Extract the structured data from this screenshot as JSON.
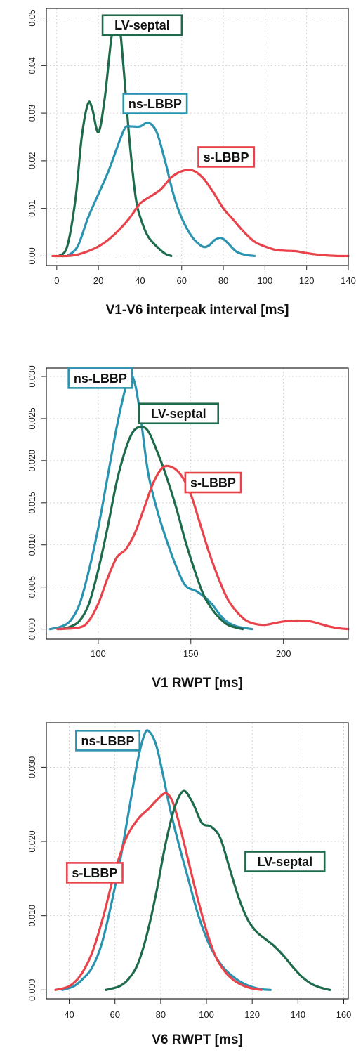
{
  "colors": {
    "lv_septal": "#1e6b4c",
    "ns_lbbp": "#2a93b0",
    "s_lbbp": "#e8434b",
    "grid": "#c8c8c8",
    "axis": "#222222"
  },
  "chart_data": [
    {
      "type": "line",
      "title": "",
      "xlabel": "V1-V6 interpeak interval [ms]",
      "ylabel": "",
      "xlim": [
        -5,
        140
      ],
      "ylim": [
        -0.002,
        0.052
      ],
      "xticks": [
        0,
        20,
        40,
        60,
        80,
        100,
        120,
        140
      ],
      "xtick_labels": [
        "0",
        "20",
        "40",
        "60",
        "80",
        "100",
        "120",
        "140"
      ],
      "yticks": [
        0,
        0.01,
        0.02,
        0.03,
        0.04,
        0.05
      ],
      "ytick_labels": [
        "0.00",
        "0.01",
        "0.02",
        "0.03",
        "0.04",
        "0.05"
      ],
      "grid": true,
      "legend": "labels placed next to curves",
      "series": [
        {
          "name": "LV-septal",
          "color_key": "lv_septal",
          "label_at": [
            22,
            0.0485
          ],
          "x": [
            1,
            5,
            9,
            12,
            15,
            17,
            20,
            23,
            26,
            28,
            30,
            32,
            35,
            38,
            41,
            44,
            48,
            52,
            55
          ],
          "y": [
            0,
            0.002,
            0.012,
            0.025,
            0.032,
            0.031,
            0.026,
            0.033,
            0.045,
            0.05,
            0.049,
            0.04,
            0.024,
            0.012,
            0.007,
            0.004,
            0.002,
            0.0005,
            0
          ]
        },
        {
          "name": "ns-LBBP",
          "color_key": "ns_lbbp",
          "label_at": [
            32,
            0.032
          ],
          "x": [
            5,
            10,
            15,
            20,
            25,
            30,
            33,
            36,
            40,
            44,
            48,
            52,
            56,
            60,
            65,
            70,
            73,
            76,
            79,
            82,
            86,
            90,
            95
          ],
          "y": [
            0,
            0.002,
            0.008,
            0.013,
            0.018,
            0.024,
            0.027,
            0.0272,
            0.0272,
            0.028,
            0.026,
            0.02,
            0.013,
            0.008,
            0.004,
            0.002,
            0.0022,
            0.0034,
            0.0038,
            0.0028,
            0.001,
            0.0003,
            0
          ]
        },
        {
          "name": "s-LBBP",
          "color_key": "s_lbbp",
          "label_at": [
            68,
            0.0208
          ],
          "x": [
            -2,
            5,
            10,
            15,
            20,
            25,
            30,
            35,
            40,
            45,
            50,
            55,
            60,
            65,
            70,
            75,
            80,
            85,
            90,
            95,
            100,
            105,
            110,
            115,
            120,
            125,
            130,
            135,
            140
          ],
          "y": [
            0,
            0,
            0.0003,
            0.001,
            0.002,
            0.0035,
            0.0055,
            0.008,
            0.011,
            0.0125,
            0.014,
            0.0165,
            0.0178,
            0.018,
            0.0165,
            0.0135,
            0.01,
            0.0075,
            0.005,
            0.003,
            0.002,
            0.0013,
            0.0011,
            0.001,
            0.0006,
            0.0003,
            0.0001,
            0,
            0
          ]
        }
      ]
    },
    {
      "type": "line",
      "title": "",
      "xlabel": "V1 RWPT [ms]",
      "ylabel": "",
      "xlim": [
        72,
        235
      ],
      "ylim": [
        -0.0012,
        0.031
      ],
      "xticks": [
        100,
        150,
        200
      ],
      "xtick_labels": [
        "100",
        "150",
        "200"
      ],
      "yticks": [
        0,
        0.005,
        0.01,
        0.015,
        0.02,
        0.025,
        0.03
      ],
      "ytick_labels": [
        "0.000",
        "0.005",
        "0.010",
        "0.015",
        "0.020",
        "0.025",
        "0.030"
      ],
      "grid": true,
      "legend": "labels placed next to curves",
      "series": [
        {
          "name": "ns-LBBP",
          "color_key": "ns_lbbp",
          "label_at": [
            84,
            0.0298
          ],
          "x": [
            74,
            80,
            85,
            90,
            95,
            100,
            105,
            110,
            114,
            117,
            120,
            123,
            127,
            132,
            137,
            142,
            147,
            153,
            158,
            162,
            166,
            170,
            175,
            180,
            183
          ],
          "y": [
            0,
            0.0003,
            0.001,
            0.003,
            0.007,
            0.012,
            0.018,
            0.024,
            0.028,
            0.0302,
            0.029,
            0.025,
            0.0185,
            0.014,
            0.0105,
            0.0075,
            0.0052,
            0.0045,
            0.0037,
            0.0028,
            0.0016,
            0.0008,
            0.0003,
            0.0001,
            0
          ]
        },
        {
          "name": "LV-septal",
          "color_key": "lv_septal",
          "label_at": [
            122,
            0.0256
          ],
          "x": [
            80,
            85,
            90,
            95,
            100,
            105,
            110,
            115,
            119,
            123,
            127,
            132,
            137,
            142,
            147,
            152,
            157,
            162,
            166,
            170,
            174,
            178
          ],
          "y": [
            0,
            0.0003,
            0.001,
            0.003,
            0.007,
            0.012,
            0.0175,
            0.0215,
            0.0235,
            0.024,
            0.0235,
            0.021,
            0.018,
            0.0145,
            0.0105,
            0.007,
            0.004,
            0.0022,
            0.0012,
            0.0005,
            0.0002,
            0
          ]
        },
        {
          "name": "s-LBBP",
          "color_key": "s_lbbp",
          "label_at": [
            147,
            0.0174
          ],
          "x": [
            78,
            90,
            95,
            100,
            105,
            110,
            115,
            120,
            125,
            130,
            135,
            140,
            145,
            150,
            155,
            160,
            165,
            170,
            175,
            180,
            185,
            190,
            195,
            200,
            205,
            210,
            215,
            220,
            225,
            230,
            235
          ],
          "y": [
            0,
            0.0002,
            0.001,
            0.003,
            0.006,
            0.0085,
            0.0095,
            0.0115,
            0.0145,
            0.0175,
            0.0192,
            0.0192,
            0.0182,
            0.016,
            0.0125,
            0.009,
            0.006,
            0.0035,
            0.002,
            0.001,
            0.0006,
            0.0005,
            0.0007,
            0.0009,
            0.001,
            0.001,
            0.0009,
            0.0006,
            0.0003,
            0.0001,
            0
          ]
        }
      ]
    },
    {
      "type": "line",
      "title": "",
      "xlabel": "V6 RWPT [ms]",
      "ylabel": "",
      "xlim": [
        30,
        162
      ],
      "ylim": [
        -0.0012,
        0.036
      ],
      "xticks": [
        40,
        60,
        80,
        100,
        120,
        140,
        160
      ],
      "xtick_labels": [
        "40",
        "60",
        "80",
        "100",
        "120",
        "140",
        "160"
      ],
      "yticks": [
        0,
        0.01,
        0.02,
        0.03
      ],
      "ytick_labels": [
        "0.000",
        "0.010",
        "0.020",
        "0.030"
      ],
      "grid": true,
      "legend": "labels placed next to curves",
      "series": [
        {
          "name": "ns-LBBP",
          "color_key": "ns_lbbp",
          "label_at": [
            43,
            0.0336
          ],
          "x": [
            37,
            42,
            46,
            50,
            54,
            58,
            62,
            66,
            70,
            73,
            75,
            78,
            81,
            84,
            88,
            92,
            96,
            100,
            104,
            108,
            112,
            116,
            120,
            124,
            128
          ],
          "y": [
            0,
            0.0005,
            0.0015,
            0.003,
            0.006,
            0.011,
            0.017,
            0.024,
            0.031,
            0.0345,
            0.0348,
            0.033,
            0.029,
            0.0245,
            0.0195,
            0.015,
            0.0105,
            0.007,
            0.0045,
            0.0028,
            0.0017,
            0.0009,
            0.0004,
            0.0001,
            0
          ]
        },
        {
          "name": "s-LBBP",
          "color_key": "s_lbbp",
          "label_at": [
            39,
            0.0158
          ],
          "x": [
            34,
            40,
            45,
            50,
            55,
            60,
            65,
            70,
            75,
            78,
            82,
            85,
            88,
            92,
            96,
            100,
            104,
            108,
            112,
            116,
            120,
            124
          ],
          "y": [
            0,
            0.0005,
            0.002,
            0.005,
            0.01,
            0.016,
            0.0205,
            0.023,
            0.0245,
            0.0255,
            0.0265,
            0.0255,
            0.0225,
            0.0175,
            0.0125,
            0.008,
            0.0045,
            0.0025,
            0.0013,
            0.0006,
            0.0002,
            0
          ]
        },
        {
          "name": "LV-septal",
          "color_key": "lv_septal",
          "label_at": [
            117,
            0.0173
          ],
          "x": [
            56,
            62,
            66,
            70,
            74,
            78,
            82,
            86,
            90,
            94,
            98,
            102,
            106,
            110,
            114,
            118,
            122,
            126,
            130,
            134,
            138,
            142,
            146,
            150,
            154
          ],
          "y": [
            0,
            0.0005,
            0.0015,
            0.0035,
            0.0075,
            0.013,
            0.0195,
            0.0245,
            0.0268,
            0.0252,
            0.0225,
            0.022,
            0.0205,
            0.0165,
            0.0125,
            0.0095,
            0.0078,
            0.0068,
            0.0058,
            0.0045,
            0.003,
            0.0017,
            0.0008,
            0.0003,
            0
          ]
        }
      ]
    }
  ]
}
